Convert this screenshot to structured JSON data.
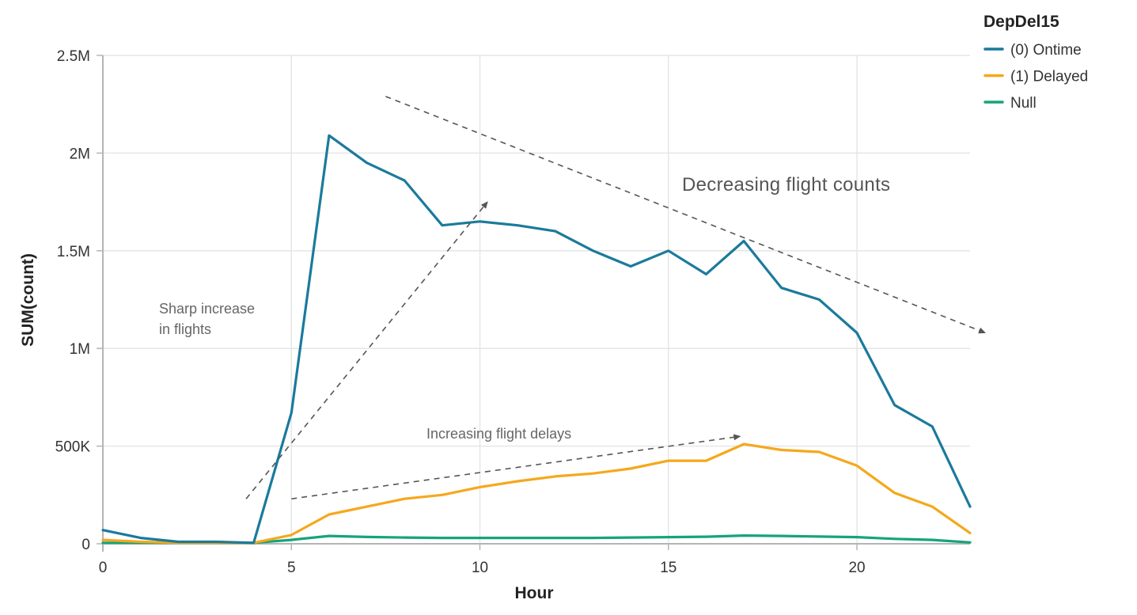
{
  "chart_data": {
    "type": "line",
    "xlabel": "Hour",
    "ylabel": "SUM(count)",
    "xlim": [
      0,
      23
    ],
    "ylim": [
      0,
      2500000
    ],
    "x_ticks": [
      0,
      5,
      10,
      15,
      20
    ],
    "x_tick_labels": [
      "0",
      "5",
      "10",
      "15",
      "20"
    ],
    "y_ticks": [
      0,
      500000,
      1000000,
      1500000,
      2000000,
      2500000
    ],
    "y_tick_labels": [
      "0",
      "500K",
      "1M",
      "1.5M",
      "2M",
      "2.5M"
    ],
    "grid": true,
    "legend": {
      "title": "DepDel15",
      "position": "top-right"
    },
    "x": [
      0,
      1,
      2,
      3,
      4,
      5,
      6,
      7,
      8,
      9,
      10,
      11,
      12,
      13,
      14,
      15,
      16,
      17,
      18,
      19,
      20,
      21,
      22,
      23
    ],
    "series": [
      {
        "name": "(0) Ontime",
        "color": "#1b7a9c",
        "values": [
          70000,
          30000,
          10000,
          10000,
          5000,
          670000,
          2090000,
          1950000,
          1860000,
          1630000,
          1650000,
          1630000,
          1600000,
          1500000,
          1420000,
          1500000,
          1380000,
          1550000,
          1310000,
          1250000,
          1080000,
          710000,
          600000,
          190000
        ]
      },
      {
        "name": "(1) Delayed",
        "color": "#f5a81c",
        "values": [
          20000,
          10000,
          5000,
          5000,
          5000,
          45000,
          150000,
          190000,
          230000,
          250000,
          290000,
          320000,
          345000,
          360000,
          385000,
          425000,
          425000,
          510000,
          480000,
          470000,
          400000,
          260000,
          190000,
          55000
        ]
      },
      {
        "name": "Null",
        "color": "#16a47a",
        "values": [
          5000,
          5000,
          5000,
          5000,
          5000,
          20000,
          40000,
          35000,
          32000,
          30000,
          30000,
          30000,
          30000,
          30000,
          32000,
          34000,
          36000,
          42000,
          40000,
          37000,
          34000,
          25000,
          20000,
          7000
        ]
      }
    ],
    "annotations": {
      "sharp_line1": "Sharp increase",
      "sharp_line2": "in flights",
      "decreasing": "Decreasing flight counts",
      "delays": "Increasing flight delays"
    },
    "annotation_arrows": [
      {
        "name": "sharp-increase-arrow",
        "from": [
          3.8,
          230000
        ],
        "to": [
          10.2,
          1750000
        ]
      },
      {
        "name": "delays-arrow",
        "from": [
          5.0,
          230000
        ],
        "to": [
          16.9,
          550000
        ]
      },
      {
        "name": "decreasing-arrow",
        "from": [
          7.5,
          2290000
        ],
        "to": [
          23.4,
          1080000
        ]
      }
    ]
  }
}
